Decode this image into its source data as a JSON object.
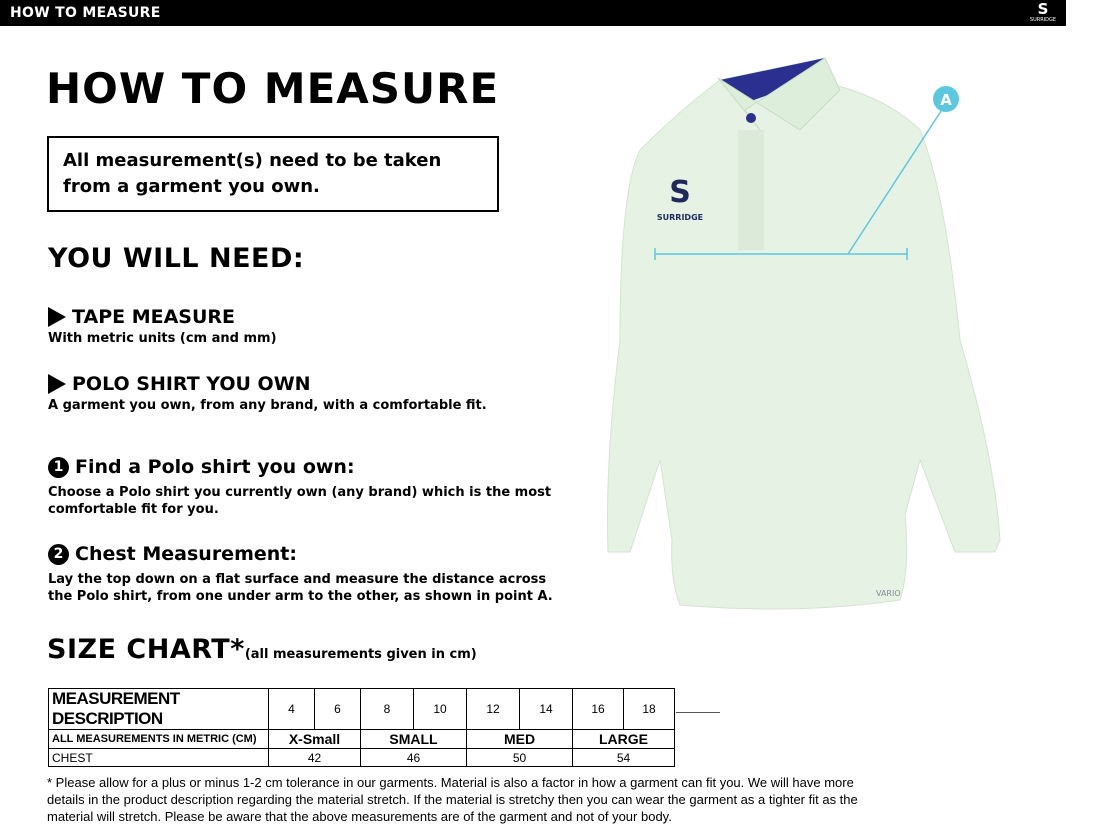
{
  "header": {
    "title": "HOW TO MEASURE",
    "logo_text": "SURRIDGE"
  },
  "main": {
    "title": "HOW TO MEASURE",
    "notice": "All measurement(s) need to be taken from a garment you own.",
    "need_title": "YOU WILL NEED:",
    "needs": [
      {
        "title": "TAPE MEASURE",
        "desc": "With metric units (cm and mm)"
      },
      {
        "title": "POLO SHIRT YOU OWN",
        "desc": "A garment you own, from any brand, with a comfortable fit."
      }
    ],
    "steps": [
      {
        "num": "1",
        "title": "Find a Polo shirt you own:",
        "desc": "Choose a Polo shirt you currently own (any brand) which is the most comfortable fit for you."
      },
      {
        "num": "2",
        "title": "Chest Measurement:",
        "desc": "Lay the top down on a flat surface and measure the distance across the Polo shirt, from one under arm to the other, as shown in point A."
      }
    ],
    "size_chart_title": "SIZE CHART*",
    "size_chart_note": "(all measurements given in cm)"
  },
  "image": {
    "marker": "A",
    "shirt_logo": "SURRIDGE",
    "sleeve_text": "VARIO",
    "colors": {
      "shirt": "#e6f3e4",
      "collar": "#2b2f8f",
      "measure_line": "#5cc8e0"
    }
  },
  "table": {
    "header": [
      "MEASUREMENT DESCRIPTION",
      "4",
      "6",
      "8",
      "10",
      "12",
      "14",
      "16",
      "18"
    ],
    "row2": [
      "ALL MEASUREMENTS IN METRIC (CM)",
      "X-Small",
      "SMALL",
      "MED",
      "LARGE"
    ],
    "row3": [
      "CHEST",
      "42",
      "46",
      "50",
      "54"
    ]
  },
  "footnote": "* Please allow for a plus or minus 1-2 cm tolerance in our garments. Material is also a factor in how a garment can fit you. We will have more details in the product description regarding the material stretch.  If the material is stretchy then you can wear the garment as a tighter fit as the material will stretch.  Please be aware that the above measurements are of the garment and not of your body."
}
